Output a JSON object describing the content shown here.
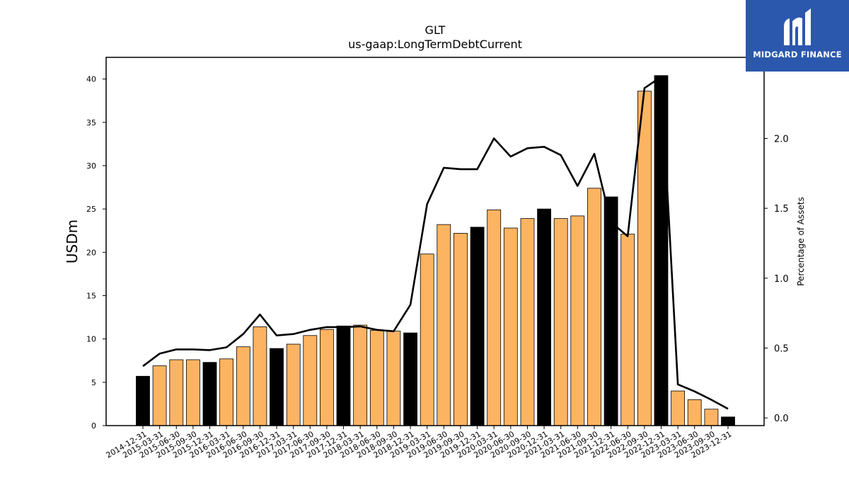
{
  "brand": {
    "name": "MIDGARD FINANCE",
    "icon": "midgard-logo-icon",
    "color": "#2b58ad"
  },
  "chart_data": {
    "type": "bar",
    "title": "GLT",
    "subtitle": "us-gaap:LongTermDebtCurrent",
    "ylabel": "USDm",
    "y2label": "Percentage of Assets",
    "ylim": [
      0,
      42.5
    ],
    "y2lim": [
      -0.055,
      2.58
    ],
    "yticks": [
      0,
      5,
      10,
      15,
      20,
      25,
      30,
      35,
      40
    ],
    "y2ticks": [
      0.0,
      0.5,
      1.0,
      1.5,
      2.0
    ],
    "y2tick_labels": [
      "0.0",
      "0.5",
      "1.0",
      "1.5",
      "2.0"
    ],
    "grid": false,
    "colors": {
      "q4_bar": "#000000",
      "other_bar": "#fdb462",
      "line": "#000000"
    },
    "categories": [
      "2014-12-31",
      "2015-03-31",
      "2015-06-30",
      "2015-09-30",
      "2015-12-31",
      "2016-03-31",
      "2016-06-30",
      "2016-09-30",
      "2016-12-31",
      "2017-03-31",
      "2017-06-30",
      "2017-09-30",
      "2017-12-31",
      "2018-03-31",
      "2018-06-30",
      "2018-09-30",
      "2018-12-31",
      "2019-03-31",
      "2019-06-30",
      "2019-09-30",
      "2019-12-31",
      "2020-03-31",
      "2020-06-30",
      "2020-09-30",
      "2020-12-31",
      "2021-03-31",
      "2021-06-30",
      "2021-09-30",
      "2021-12-31",
      "2022-06-30",
      "2022-09-30",
      "2022-12-31",
      "2023-03-31",
      "2023-06-30",
      "2023-09-30",
      "2023-12-31"
    ],
    "series": [
      {
        "type": "bar",
        "values": [
          5.7,
          6.9,
          7.6,
          7.6,
          7.3,
          7.7,
          9.1,
          11.4,
          8.9,
          9.4,
          10.4,
          11.1,
          11.5,
          11.6,
          11.0,
          10.9,
          10.7,
          19.8,
          23.2,
          22.2,
          22.9,
          24.9,
          22.8,
          23.9,
          25.0,
          23.9,
          24.2,
          27.4,
          26.4,
          22.1,
          38.6,
          40.4,
          4.0,
          3.0,
          1.9,
          1.0
        ]
      },
      {
        "type": "line",
        "axis": "right",
        "values": [
          0.37,
          0.46,
          0.49,
          0.49,
          0.485,
          0.505,
          0.6,
          0.74,
          0.59,
          0.6,
          0.63,
          0.65,
          0.65,
          0.655,
          0.63,
          0.62,
          0.81,
          1.53,
          1.79,
          1.78,
          1.78,
          2.0,
          1.87,
          1.93,
          1.94,
          1.88,
          1.66,
          1.89,
          1.4,
          1.3,
          2.36,
          2.44,
          0.24,
          0.19,
          0.13,
          0.065
        ]
      }
    ]
  }
}
